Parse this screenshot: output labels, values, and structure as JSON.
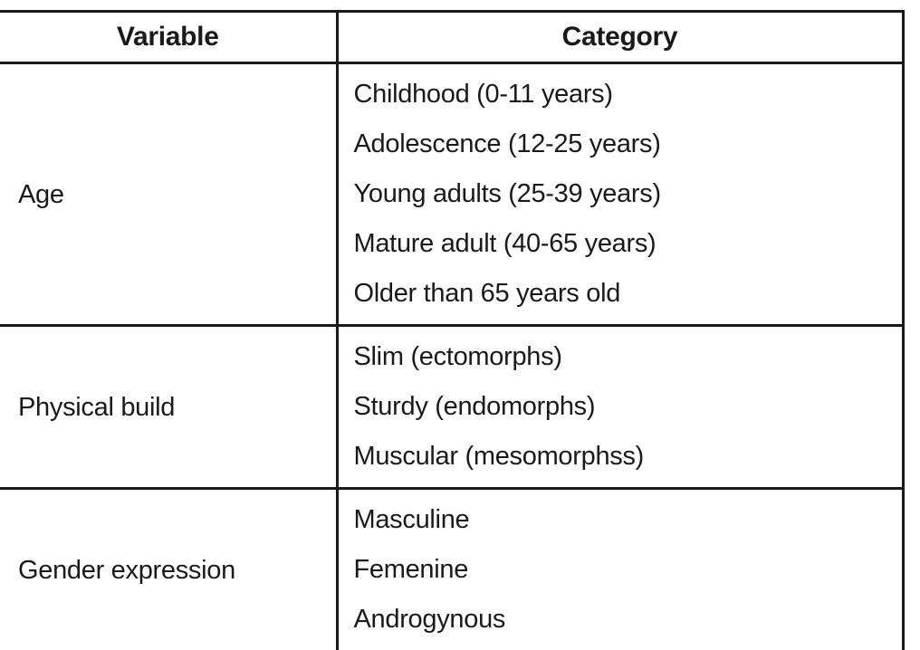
{
  "table": {
    "columns": [
      "Variable",
      "Category"
    ],
    "rows": [
      {
        "variable": "Age",
        "categories": [
          "Childhood (0-11 years)",
          "Adolescence (12-25 years)",
          "Young adults (25-39 years)",
          "Mature adult (40-65 years)",
          "Older than 65 years old"
        ]
      },
      {
        "variable": "Physical build",
        "categories": [
          "Slim (ectomorphs)",
          "Sturdy (endomorphs)",
          "Muscular (mesomorphss)"
        ]
      },
      {
        "variable": "Gender expression",
        "categories": [
          "Masculine",
          "Femenine",
          "Androgynous"
        ]
      }
    ],
    "colors": {
      "border": "#1a1a1a",
      "text": "#1a1a1a",
      "background": "#ffffff"
    }
  }
}
